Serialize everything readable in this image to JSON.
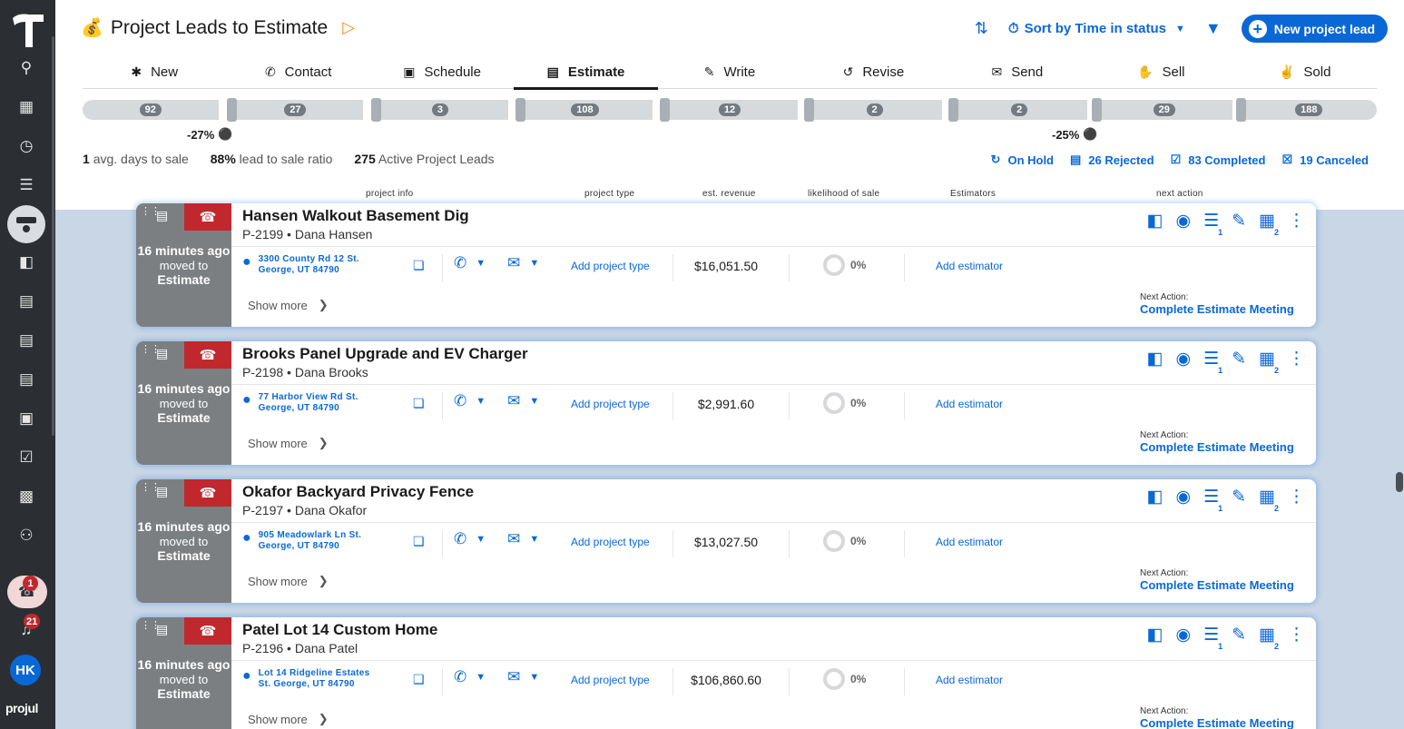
{
  "app": {
    "brand": "projul",
    "avatar_initials": "HK",
    "notify_badge": "1",
    "bell_badge": "21"
  },
  "header": {
    "title": "Project Leads to Estimate",
    "sort_label": "Sort by Time in status",
    "new_button": "New project lead"
  },
  "tabs": [
    {
      "label": "New",
      "icon": "asterisk-icon"
    },
    {
      "label": "Contact",
      "icon": "phone-icon"
    },
    {
      "label": "Schedule",
      "icon": "calendar-icon"
    },
    {
      "label": "Estimate",
      "icon": "document-icon"
    },
    {
      "label": "Write",
      "icon": "pencil-icon"
    },
    {
      "label": "Revise",
      "icon": "undo-icon"
    },
    {
      "label": "Send",
      "icon": "mail-icon"
    },
    {
      "label": "Sell",
      "icon": "handshake-icon"
    },
    {
      "label": "Sold",
      "icon": "thumbs-up-icon"
    }
  ],
  "funnel_counts": [
    "92",
    "27",
    "3",
    "108",
    "12",
    "2",
    "2",
    "29",
    "188"
  ],
  "conversions": [
    "-27%",
    "-25%"
  ],
  "stats": {
    "avg_days": "1",
    "avg_days_label": "avg. days to sale",
    "ratio": "88%",
    "ratio_label": "lead to sale ratio",
    "active": "275",
    "active_label": "Active Project Leads"
  },
  "status_links": {
    "on_hold": "On Hold",
    "rejected": "26 Rejected",
    "completed": "83 Completed",
    "canceled": "19 Canceled"
  },
  "columns": {
    "info": "project info",
    "type": "project type",
    "revenue": "est. revenue",
    "likelihood": "likelihood of sale",
    "estimators": "Estimators",
    "next": "next action"
  },
  "card_labels": {
    "time": "16 minutes ago",
    "moved": "moved to",
    "moved_stage": "Estimate",
    "add_type": "Add project type",
    "add_estimator": "Add estimator",
    "show_more": "Show more",
    "next_label": "Next Action:",
    "next_value": "Complete Estimate Meeting",
    "likelihood": "0%",
    "checklist_count": "1",
    "grid_count": "2"
  },
  "cards": [
    {
      "title": "Hansen Walkout Basement Dig",
      "code": "P-2199",
      "client": "Dana Hansen",
      "addr1": "3300 County Rd 12 St.",
      "addr2": "George, UT 84790",
      "revenue": "$16,051.50"
    },
    {
      "title": "Brooks Panel Upgrade and EV Charger",
      "code": "P-2198",
      "client": "Dana Brooks",
      "addr1": "77 Harbor View Rd St.",
      "addr2": "George, UT 84790",
      "revenue": "$2,991.60"
    },
    {
      "title": "Okafor Backyard Privacy Fence",
      "code": "P-2197",
      "client": "Dana Okafor",
      "addr1": "905 Meadowlark Ln St.",
      "addr2": "George, UT 84790",
      "revenue": "$13,027.50"
    },
    {
      "title": "Patel Lot 14 Custom Home",
      "code": "P-2196",
      "client": "Dana Patel",
      "addr1": "Lot 14 Ridgeline Estates",
      "addr2": "St. George, UT 84790",
      "revenue": "$106,860.60"
    }
  ]
}
